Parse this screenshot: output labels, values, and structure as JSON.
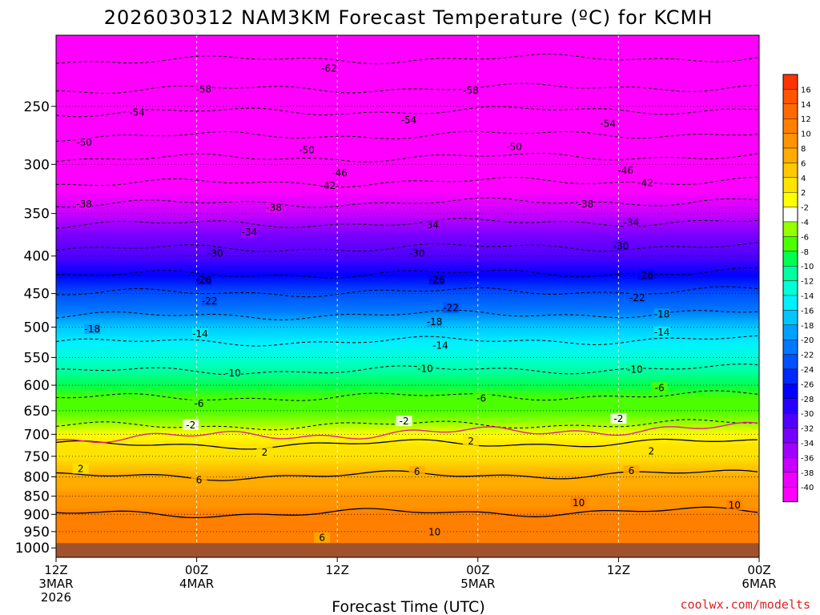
{
  "chart_data": {
    "type": "heatmap",
    "title": "2026030312 NAM3KM Forecast Temperature (ºC) for KCMH",
    "xlabel": "Forecast Time (UTC)",
    "ylabel": "",
    "watermark": "coolwx.com/modelts",
    "y_unit": "hPa",
    "y_ticks": [
      250,
      300,
      350,
      400,
      450,
      500,
      550,
      600,
      650,
      700,
      750,
      800,
      850,
      900,
      950,
      1000
    ],
    "ylim": [
      200,
      1030
    ],
    "xlim_hours": [
      0,
      60
    ],
    "x_ticks": [
      {
        "hour": 0,
        "label": "12Z",
        "sub1": "3MAR",
        "sub2": "2026"
      },
      {
        "hour": 12,
        "label": "00Z",
        "sub1": "4MAR",
        "sub2": ""
      },
      {
        "hour": 24,
        "label": "12Z",
        "sub1": "",
        "sub2": ""
      },
      {
        "hour": 36,
        "label": "00Z",
        "sub1": "5MAR",
        "sub2": ""
      },
      {
        "hour": 48,
        "label": "12Z",
        "sub1": "",
        "sub2": ""
      },
      {
        "hour": 60,
        "label": "00Z",
        "sub1": "6MAR",
        "sub2": ""
      }
    ],
    "surface_pressure": 985,
    "profile": [
      {
        "p": 200,
        "t": -64
      },
      {
        "p": 225,
        "t": -61
      },
      {
        "p": 250,
        "t": -55
      },
      {
        "p": 275,
        "t": -50
      },
      {
        "p": 300,
        "t": -45
      },
      {
        "p": 325,
        "t": -41
      },
      {
        "p": 350,
        "t": -36
      },
      {
        "p": 375,
        "t": -32
      },
      {
        "p": 400,
        "t": -29
      },
      {
        "p": 425,
        "t": -26
      },
      {
        "p": 450,
        "t": -22
      },
      {
        "p": 475,
        "t": -19
      },
      {
        "p": 500,
        "t": -16
      },
      {
        "p": 525,
        "t": -14
      },
      {
        "p": 550,
        "t": -12
      },
      {
        "p": 575,
        "t": -10
      },
      {
        "p": 600,
        "t": -8
      },
      {
        "p": 625,
        "t": -6
      },
      {
        "p": 650,
        "t": -5
      },
      {
        "p": 675,
        "t": -3
      },
      {
        "p": 700,
        "t": 0
      },
      {
        "p": 725,
        "t": 2
      },
      {
        "p": 750,
        "t": 3
      },
      {
        "p": 775,
        "t": 4
      },
      {
        "p": 800,
        "t": 6
      },
      {
        "p": 825,
        "t": 7
      },
      {
        "p": 850,
        "t": 8
      },
      {
        "p": 875,
        "t": 9
      },
      {
        "p": 900,
        "t": 10
      },
      {
        "p": 925,
        "t": 11
      },
      {
        "p": 950,
        "t": 11
      },
      {
        "p": 975,
        "t": 10
      },
      {
        "p": 1000,
        "t": 11
      }
    ],
    "contour_labels": [
      {
        "v": "-62",
        "h": 23.3,
        "p": 222
      },
      {
        "v": "-58",
        "h": 12.6,
        "p": 237
      },
      {
        "v": "-58",
        "h": 35.4,
        "p": 238
      },
      {
        "v": "-54",
        "h": 6.9,
        "p": 255
      },
      {
        "v": "-54",
        "h": 30.1,
        "p": 261
      },
      {
        "v": "-54",
        "h": 47.1,
        "p": 264
      },
      {
        "v": "-50",
        "h": 2.4,
        "p": 280
      },
      {
        "v": "-50",
        "h": 21.4,
        "p": 287
      },
      {
        "v": "-50",
        "h": 39.1,
        "p": 284
      },
      {
        "v": "-46",
        "h": 24.2,
        "p": 308
      },
      {
        "v": "-46",
        "h": 48.6,
        "p": 306
      },
      {
        "v": "-42",
        "h": 23.2,
        "p": 321
      },
      {
        "v": "-42",
        "h": 50.3,
        "p": 318
      },
      {
        "v": "-38",
        "h": 2.4,
        "p": 340
      },
      {
        "v": "-38",
        "h": 18.6,
        "p": 344
      },
      {
        "v": "-38",
        "h": 45.2,
        "p": 340
      },
      {
        "v": "-34",
        "h": 16.5,
        "p": 371
      },
      {
        "v": "-34",
        "h": 32.0,
        "p": 363
      },
      {
        "v": "-34",
        "h": 49.1,
        "p": 360
      },
      {
        "v": "-30",
        "h": 13.6,
        "p": 397
      },
      {
        "v": "-30",
        "h": 30.8,
        "p": 397
      },
      {
        "v": "-30",
        "h": 48.2,
        "p": 388
      },
      {
        "v": "-26",
        "h": 12.6,
        "p": 431
      },
      {
        "v": "-26",
        "h": 32.5,
        "p": 431
      },
      {
        "v": "-26",
        "h": 50.3,
        "p": 425
      },
      {
        "v": "-22",
        "h": 13.1,
        "p": 461
      },
      {
        "v": "-22",
        "h": 33.7,
        "p": 471
      },
      {
        "v": "-22",
        "h": 49.6,
        "p": 456
      },
      {
        "v": "-18",
        "h": 3.1,
        "p": 503
      },
      {
        "v": "-18",
        "h": 32.3,
        "p": 492
      },
      {
        "v": "-18",
        "h": 51.7,
        "p": 480
      },
      {
        "v": "-14",
        "h": 12.3,
        "p": 511
      },
      {
        "v": "-14",
        "h": 32.8,
        "p": 530
      },
      {
        "v": "-14",
        "h": 51.7,
        "p": 508
      },
      {
        "v": "-10",
        "h": 15.1,
        "p": 578
      },
      {
        "v": "-10",
        "h": 31.5,
        "p": 570
      },
      {
        "v": "-10",
        "h": 49.4,
        "p": 571
      },
      {
        "v": "-6",
        "h": 12.2,
        "p": 636
      },
      {
        "v": "-6",
        "h": 36.3,
        "p": 625
      },
      {
        "v": "-6",
        "h": 51.5,
        "p": 605
      },
      {
        "v": "-2",
        "h": 11.5,
        "p": 680
      },
      {
        "v": "-2",
        "h": 29.7,
        "p": 672
      },
      {
        "v": "-2",
        "h": 48.0,
        "p": 667
      },
      {
        "v": "2",
        "h": 35.4,
        "p": 715
      },
      {
        "v": "2",
        "h": 17.8,
        "p": 741
      },
      {
        "v": "2",
        "h": 50.8,
        "p": 738
      },
      {
        "v": "2",
        "h": 2.1,
        "p": 780
      },
      {
        "v": "6",
        "h": 12.2,
        "p": 808
      },
      {
        "v": "6",
        "h": 30.8,
        "p": 787
      },
      {
        "v": "6",
        "h": 49.1,
        "p": 785
      },
      {
        "v": "10",
        "h": 32.3,
        "p": 952
      },
      {
        "v": "10",
        "h": 44.6,
        "p": 868
      },
      {
        "v": "10",
        "h": 57.9,
        "p": 875
      },
      {
        "v": "6",
        "h": 22.7,
        "p": 969
      }
    ],
    "colorbar": [
      {
        "label": "",
        "t": 17,
        "color": "#ff3300"
      },
      {
        "label": "16",
        "t": 15,
        "color": "#ff5500"
      },
      {
        "label": "14",
        "t": 13,
        "color": "#ff6a00"
      },
      {
        "label": "12",
        "t": 11,
        "color": "#ff7f00"
      },
      {
        "label": "10",
        "t": 9,
        "color": "#ff9400"
      },
      {
        "label": "8",
        "t": 7,
        "color": "#ffab00"
      },
      {
        "label": "6",
        "t": 5,
        "color": "#ffc800"
      },
      {
        "label": "4",
        "t": 3,
        "color": "#ffe400"
      },
      {
        "label": "2",
        "t": 1,
        "color": "#ffff00"
      },
      {
        "label": "-2",
        "t": -1,
        "color": "#ffffff"
      },
      {
        "label": "-4",
        "t": -3,
        "color": "#96ff00"
      },
      {
        "label": "-6",
        "t": -5,
        "color": "#4bff00"
      },
      {
        "label": "-8",
        "t": -7,
        "color": "#00ff50"
      },
      {
        "label": "-10",
        "t": -9,
        "color": "#00ffa0"
      },
      {
        "label": "-12",
        "t": -11,
        "color": "#00ffd8"
      },
      {
        "label": "-14",
        "t": -13,
        "color": "#00f0ff"
      },
      {
        "label": "-16",
        "t": -15,
        "color": "#00c8ff"
      },
      {
        "label": "-18",
        "t": -17,
        "color": "#00a0ff"
      },
      {
        "label": "-20",
        "t": -19,
        "color": "#0078ff"
      },
      {
        "label": "-22",
        "t": -21,
        "color": "#0050ff"
      },
      {
        "label": "-24",
        "t": -23,
        "color": "#0028ff"
      },
      {
        "label": "-26",
        "t": -25,
        "color": "#0000ff"
      },
      {
        "label": "-28",
        "t": -27,
        "color": "#2800ff"
      },
      {
        "label": "-30",
        "t": -29,
        "color": "#5000ff"
      },
      {
        "label": "-32",
        "t": -31,
        "color": "#7800ff"
      },
      {
        "label": "-34",
        "t": -33,
        "color": "#a000ff"
      },
      {
        "label": "-36",
        "t": -35,
        "color": "#c800ff"
      },
      {
        "label": "-38",
        "t": -37,
        "color": "#f000ff"
      },
      {
        "label": "-40",
        "t": -39,
        "color": "#ff00ff"
      }
    ],
    "colors": {
      "ground": "#a0522d",
      "zero_isotherm": "#e0208a",
      "watermark": "#e02020"
    }
  }
}
